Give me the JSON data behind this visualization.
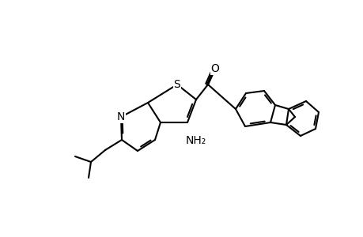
{
  "bg": "#ffffff",
  "lc": "#000000",
  "lw": 1.5,
  "atoms": {
    "S": [
      0.0,
      0.0
    ],
    "N": [
      0.0,
      0.0
    ],
    "O": [
      0.0,
      0.0
    ]
  },
  "figsize": [
    4.6,
    3.0
  ],
  "dpi": 100
}
